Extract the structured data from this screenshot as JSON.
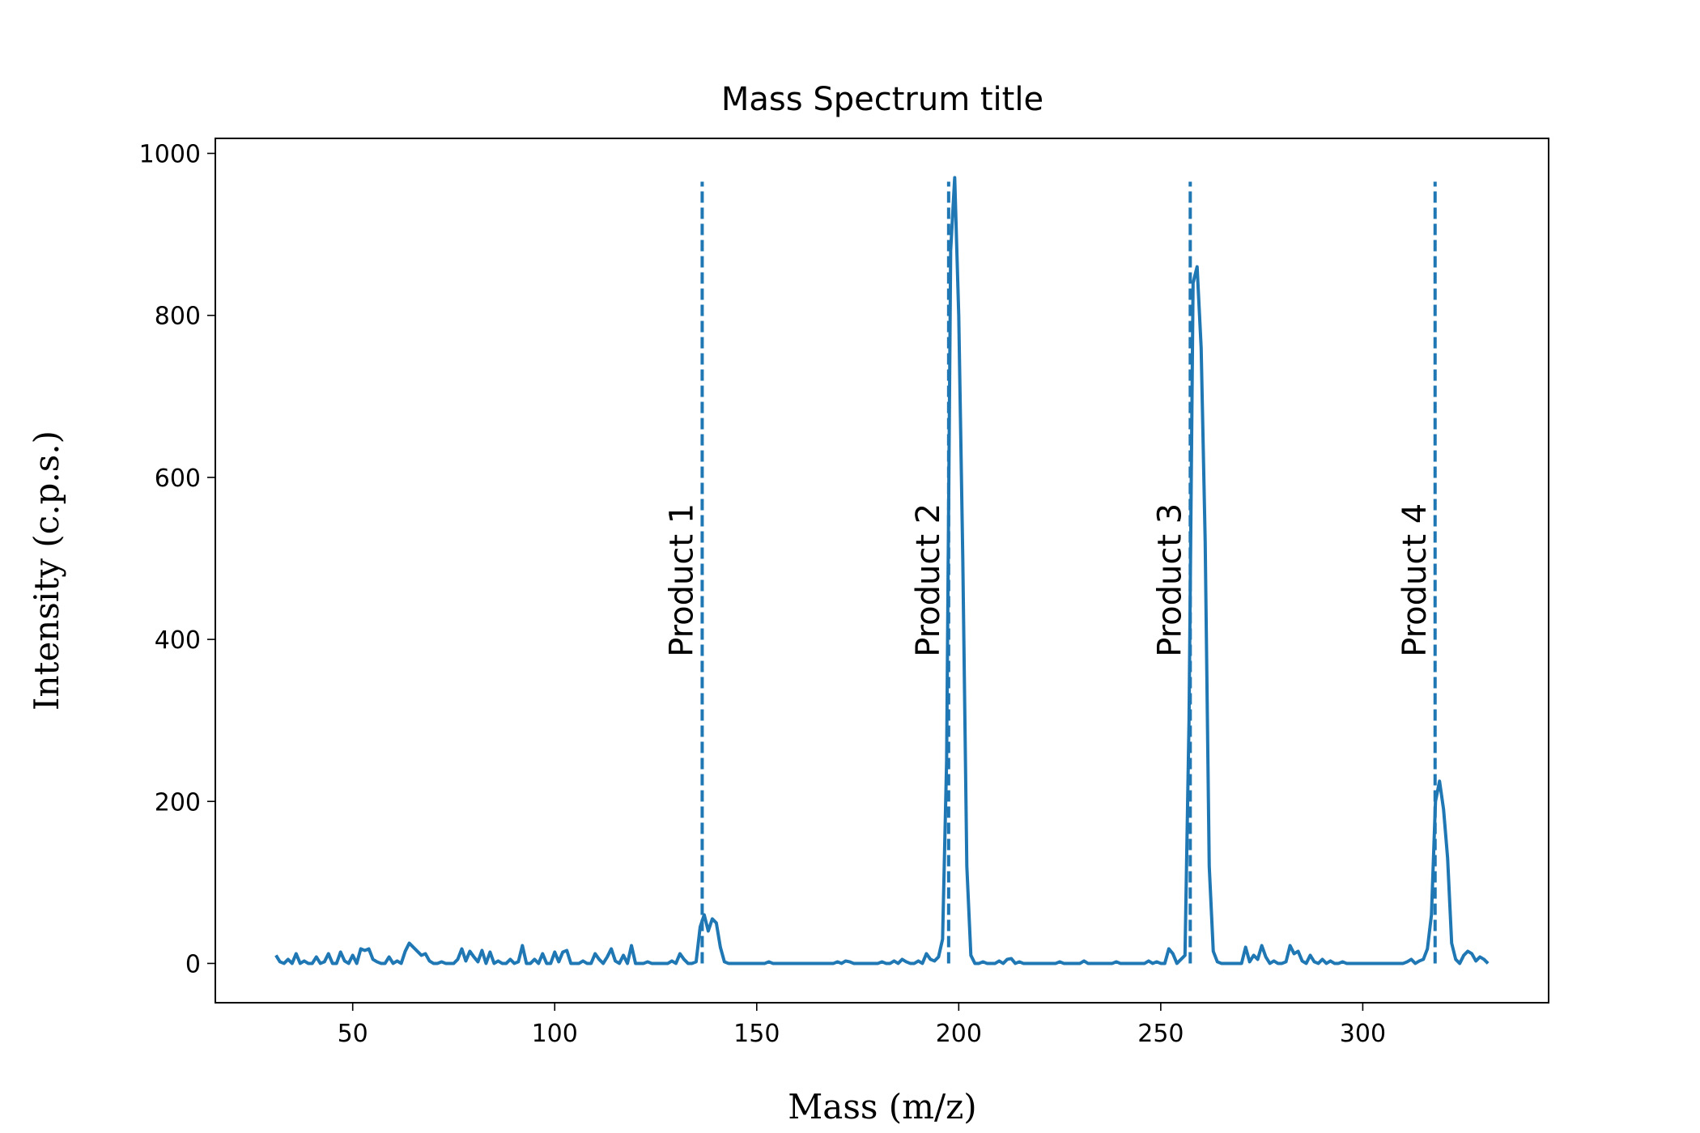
{
  "chart_data": {
    "type": "line",
    "title": "Mass Spectrum title",
    "x_label": "Mass (m/z)",
    "y_label": "Intensity (c.p.s.)",
    "x": [
      31,
      32,
      33,
      34,
      35,
      36,
      37,
      38,
      39,
      40,
      41,
      42,
      43,
      44,
      45,
      46,
      47,
      48,
      49,
      50,
      51,
      52,
      53,
      54,
      55,
      56,
      57,
      58,
      59,
      60,
      61,
      62,
      63,
      64,
      65,
      66,
      67,
      68,
      69,
      70,
      71,
      72,
      73,
      74,
      75,
      76,
      77,
      78,
      79,
      80,
      81,
      82,
      83,
      84,
      85,
      86,
      87,
      88,
      89,
      90,
      91,
      92,
      93,
      94,
      95,
      96,
      97,
      98,
      99,
      100,
      101,
      102,
      103,
      104,
      105,
      106,
      107,
      108,
      109,
      110,
      111,
      112,
      113,
      114,
      115,
      116,
      117,
      118,
      119,
      120,
      121,
      122,
      123,
      124,
      125,
      126,
      127,
      128,
      129,
      130,
      131,
      132,
      133,
      134,
      135,
      136,
      137,
      138,
      139,
      140,
      141,
      142,
      143,
      144,
      145,
      146,
      147,
      148,
      149,
      150,
      151,
      152,
      153,
      154,
      155,
      156,
      157,
      158,
      159,
      160,
      161,
      162,
      163,
      164,
      165,
      166,
      167,
      168,
      169,
      170,
      171,
      172,
      173,
      174,
      175,
      176,
      177,
      178,
      179,
      180,
      181,
      182,
      183,
      184,
      185,
      186,
      187,
      188,
      189,
      190,
      191,
      192,
      193,
      194,
      195,
      196,
      197,
      198,
      199,
      200,
      201,
      202,
      203,
      204,
      205,
      206,
      207,
      208,
      209,
      210,
      211,
      212,
      213,
      214,
      215,
      216,
      217,
      218,
      219,
      220,
      221,
      222,
      223,
      224,
      225,
      226,
      227,
      228,
      229,
      230,
      231,
      232,
      233,
      234,
      235,
      236,
      237,
      238,
      239,
      240,
      241,
      242,
      243,
      244,
      245,
      246,
      247,
      248,
      249,
      250,
      251,
      252,
      253,
      254,
      255,
      256,
      257,
      258,
      259,
      260,
      261,
      262,
      263,
      264,
      265,
      266,
      267,
      268,
      269,
      270,
      271,
      272,
      273,
      274,
      275,
      276,
      277,
      278,
      279,
      280,
      281,
      282,
      283,
      284,
      285,
      286,
      287,
      288,
      289,
      290,
      291,
      292,
      293,
      294,
      295,
      296,
      297,
      298,
      299,
      300,
      301,
      302,
      303,
      304,
      305,
      306,
      307,
      308,
      309,
      310,
      311,
      312,
      313,
      314,
      315,
      316,
      317,
      318,
      319,
      320,
      321,
      322,
      323,
      324,
      325,
      326,
      327,
      328,
      329,
      330,
      331
    ],
    "series": [
      {
        "color": "#1f77b4",
        "values": [
          10,
          2,
          0,
          5,
          0,
          12,
          0,
          3,
          0,
          0,
          8,
          0,
          2,
          12,
          0,
          0,
          14,
          3,
          0,
          10,
          0,
          18,
          16,
          18,
          5,
          2,
          0,
          0,
          8,
          0,
          3,
          0,
          15,
          25,
          20,
          15,
          10,
          12,
          3,
          0,
          0,
          2,
          0,
          0,
          0,
          5,
          18,
          3,
          15,
          8,
          2,
          16,
          0,
          14,
          0,
          3,
          0,
          0,
          5,
          0,
          2,
          22,
          0,
          0,
          5,
          0,
          12,
          0,
          0,
          14,
          2,
          14,
          16,
          0,
          0,
          0,
          3,
          0,
          0,
          12,
          5,
          0,
          8,
          18,
          3,
          0,
          10,
          0,
          22,
          0,
          0,
          0,
          2,
          0,
          0,
          0,
          0,
          0,
          3,
          0,
          12,
          5,
          0,
          0,
          2,
          45,
          60,
          40,
          55,
          50,
          20,
          2,
          0,
          0,
          0,
          0,
          0,
          0,
          0,
          0,
          0,
          0,
          2,
          0,
          0,
          0,
          0,
          0,
          0,
          0,
          0,
          0,
          0,
          0,
          0,
          0,
          0,
          0,
          0,
          2,
          0,
          3,
          2,
          0,
          0,
          0,
          0,
          0,
          0,
          0,
          2,
          0,
          0,
          3,
          0,
          5,
          2,
          0,
          0,
          3,
          0,
          12,
          5,
          3,
          8,
          30,
          250,
          880,
          970,
          800,
          500,
          120,
          10,
          0,
          0,
          2,
          0,
          0,
          0,
          3,
          0,
          5,
          6,
          0,
          2,
          0,
          0,
          0,
          0,
          0,
          0,
          0,
          0,
          0,
          2,
          0,
          0,
          0,
          0,
          0,
          3,
          0,
          0,
          0,
          0,
          0,
          0,
          0,
          2,
          0,
          0,
          0,
          0,
          0,
          0,
          0,
          3,
          0,
          2,
          0,
          0,
          18,
          12,
          0,
          5,
          10,
          300,
          840,
          860,
          760,
          520,
          120,
          15,
          2,
          0,
          0,
          0,
          0,
          0,
          0,
          20,
          2,
          10,
          5,
          22,
          8,
          0,
          3,
          0,
          0,
          2,
          22,
          12,
          15,
          3,
          0,
          10,
          2,
          0,
          5,
          0,
          3,
          0,
          0,
          2,
          0,
          0,
          0,
          0,
          0,
          0,
          0,
          0,
          0,
          0,
          0,
          0,
          0,
          0,
          0,
          2,
          5,
          0,
          3,
          5,
          18,
          60,
          200,
          225,
          190,
          130,
          25,
          5,
          0,
          10,
          15,
          12,
          3,
          8,
          5,
          0
        ]
      }
    ],
    "vlines": {
      "ymin": 0,
      "ymax": 965,
      "color": "#1f77b4",
      "items": [
        {
          "x": 136.5,
          "label": "Product 1"
        },
        {
          "x": 197.5,
          "label": "Product 2"
        },
        {
          "x": 257.3,
          "label": "Product 3"
        },
        {
          "x": 317.9,
          "label": "Product 4"
        }
      ]
    },
    "xlim": [
      16,
      346
    ],
    "ylim": [
      -48.5,
      1018.5
    ],
    "xticks": [
      50,
      100,
      150,
      200,
      250,
      300
    ],
    "yticks": [
      0,
      200,
      400,
      600,
      800,
      1000
    ]
  }
}
